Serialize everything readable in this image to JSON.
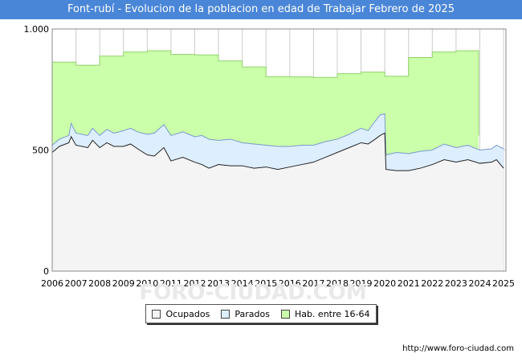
{
  "chart_data": {
    "type": "area",
    "title": "Font-rubí - Evolucion de la poblacion en edad de Trabajar Febrero de 2025",
    "xlabel": "",
    "ylabel": "",
    "ylim": [
      0,
      1000
    ],
    "xlim": [
      2006,
      2025.1
    ],
    "y_ticks": [
      {
        "value": 0,
        "label": "0"
      },
      {
        "value": 500,
        "label": "500"
      },
      {
        "value": 1000,
        "label": "1.000"
      }
    ],
    "x_ticks": [
      "2006",
      "2007",
      "2008",
      "2009",
      "2010",
      "2011",
      "2012",
      "2013",
      "2014",
      "2015",
      "2016",
      "2017",
      "2018",
      "2019",
      "2020",
      "2021",
      "2022",
      "2023",
      "2024",
      "2025"
    ],
    "grid": true,
    "legend_position": "bottom",
    "series": [
      {
        "name": "Hab. entre 16-64",
        "color": "#ccffaa",
        "stroke": "#8fd46a",
        "step": true,
        "points": [
          [
            2006,
            863
          ],
          [
            2007,
            850
          ],
          [
            2008,
            888
          ],
          [
            2009,
            905
          ],
          [
            2010,
            910
          ],
          [
            2011,
            895
          ],
          [
            2012,
            893
          ],
          [
            2013,
            868
          ],
          [
            2014,
            843
          ],
          [
            2015,
            803
          ],
          [
            2016,
            802
          ],
          [
            2017,
            800
          ],
          [
            2018,
            815
          ],
          [
            2019,
            822
          ],
          [
            2020,
            805
          ],
          [
            2021,
            882
          ],
          [
            2022,
            905
          ],
          [
            2023,
            910
          ],
          [
            2023.95,
            910
          ],
          [
            2023.95,
            560
          ]
        ]
      },
      {
        "name": "Parados",
        "color": "#ddeeff",
        "stroke": "#7799cc",
        "points": [
          [
            2006,
            520
          ],
          [
            2006.3,
            545
          ],
          [
            2006.7,
            560
          ],
          [
            2006.8,
            610
          ],
          [
            2007,
            570
          ],
          [
            2007.5,
            560
          ],
          [
            2007.7,
            590
          ],
          [
            2008,
            560
          ],
          [
            2008.3,
            585
          ],
          [
            2008.6,
            570
          ],
          [
            2009,
            580
          ],
          [
            2009.3,
            590
          ],
          [
            2009.6,
            575
          ],
          [
            2010,
            565
          ],
          [
            2010.3,
            570
          ],
          [
            2010.7,
            605
          ],
          [
            2011,
            560
          ],
          [
            2011.5,
            575
          ],
          [
            2012,
            555
          ],
          [
            2012.3,
            560
          ],
          [
            2012.6,
            545
          ],
          [
            2013,
            540
          ],
          [
            2013.5,
            545
          ],
          [
            2014,
            530
          ],
          [
            2014.5,
            525
          ],
          [
            2015,
            520
          ],
          [
            2015.5,
            515
          ],
          [
            2016,
            515
          ],
          [
            2016.5,
            520
          ],
          [
            2017,
            520
          ],
          [
            2017.5,
            535
          ],
          [
            2018,
            545
          ],
          [
            2018.5,
            565
          ],
          [
            2019,
            590
          ],
          [
            2019.3,
            580
          ],
          [
            2019.6,
            620
          ],
          [
            2019.8,
            645
          ],
          [
            2020,
            650
          ],
          [
            2020.05,
            480
          ],
          [
            2020.5,
            490
          ],
          [
            2021,
            485
          ],
          [
            2021.5,
            495
          ],
          [
            2022,
            500
          ],
          [
            2022.5,
            525
          ],
          [
            2023,
            510
          ],
          [
            2023.5,
            520
          ],
          [
            2024,
            500
          ],
          [
            2024.5,
            505
          ],
          [
            2024.7,
            520
          ],
          [
            2025,
            505
          ]
        ]
      },
      {
        "name": "Ocupados",
        "color": "#f4f4f4",
        "stroke": "#222222",
        "points": [
          [
            2006,
            490
          ],
          [
            2006.3,
            515
          ],
          [
            2006.7,
            530
          ],
          [
            2006.8,
            555
          ],
          [
            2007,
            520
          ],
          [
            2007.5,
            510
          ],
          [
            2007.7,
            540
          ],
          [
            2008,
            510
          ],
          [
            2008.3,
            530
          ],
          [
            2008.6,
            515
          ],
          [
            2009,
            515
          ],
          [
            2009.3,
            525
          ],
          [
            2009.6,
            505
          ],
          [
            2010,
            480
          ],
          [
            2010.3,
            475
          ],
          [
            2010.7,
            510
          ],
          [
            2011,
            455
          ],
          [
            2011.5,
            470
          ],
          [
            2012,
            450
          ],
          [
            2012.3,
            440
          ],
          [
            2012.6,
            425
          ],
          [
            2013,
            440
          ],
          [
            2013.5,
            435
          ],
          [
            2014,
            435
          ],
          [
            2014.5,
            425
          ],
          [
            2015,
            430
          ],
          [
            2015.5,
            420
          ],
          [
            2016,
            430
          ],
          [
            2016.5,
            440
          ],
          [
            2017,
            450
          ],
          [
            2017.5,
            470
          ],
          [
            2018,
            490
          ],
          [
            2018.5,
            510
          ],
          [
            2019,
            530
          ],
          [
            2019.3,
            525
          ],
          [
            2019.6,
            545
          ],
          [
            2019.8,
            560
          ],
          [
            2020,
            570
          ],
          [
            2020.05,
            420
          ],
          [
            2020.5,
            415
          ],
          [
            2021,
            415
          ],
          [
            2021.5,
            425
          ],
          [
            2022,
            440
          ],
          [
            2022.5,
            460
          ],
          [
            2023,
            450
          ],
          [
            2023.5,
            460
          ],
          [
            2024,
            445
          ],
          [
            2024.5,
            450
          ],
          [
            2024.7,
            460
          ],
          [
            2025,
            425
          ]
        ]
      }
    ]
  },
  "legend": {
    "items": [
      {
        "label": "Ocupados",
        "color": "#f4f4f4"
      },
      {
        "label": "Parados",
        "color": "#ddeeff"
      },
      {
        "label": "Hab. entre 16-64",
        "color": "#ccffaa"
      }
    ]
  },
  "footer": {
    "url": "http://www.foro-ciudad.com"
  },
  "watermark": "FORO-CIUDAD.COM"
}
